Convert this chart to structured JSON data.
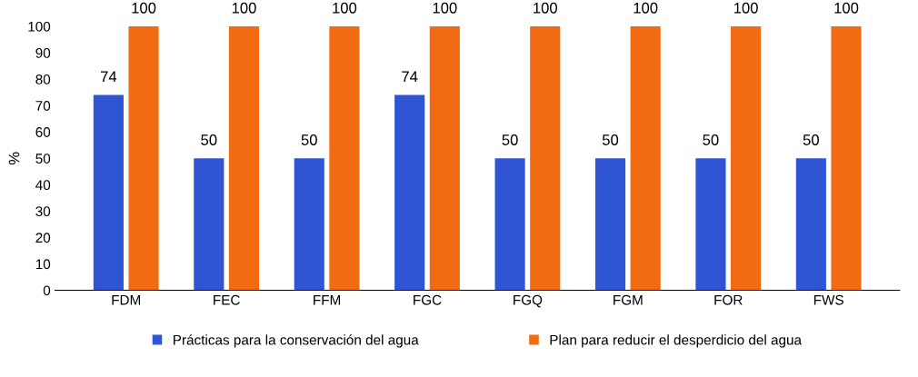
{
  "chart_data": {
    "type": "bar",
    "ylabel": "%",
    "categories": [
      "FDM",
      "FEC",
      "FFM",
      "FGC",
      "FGQ",
      "FGM",
      "FOR",
      "FWS"
    ],
    "series": [
      {
        "name": "Prácticas para la conservación del agua",
        "color": "#2f55d4",
        "values": [
          74,
          50,
          50,
          74,
          50,
          50,
          50,
          50
        ]
      },
      {
        "name": "Plan para reducir el desperdicio del agua",
        "color": "#f26a12",
        "values": [
          100,
          100,
          100,
          100,
          100,
          100,
          100,
          100
        ]
      }
    ],
    "ylim": [
      0,
      100
    ],
    "yticks": [
      0,
      10,
      20,
      30,
      40,
      50,
      60,
      70,
      80,
      90,
      100
    ],
    "data_labels": true,
    "grid": false,
    "legend": "bottom"
  }
}
